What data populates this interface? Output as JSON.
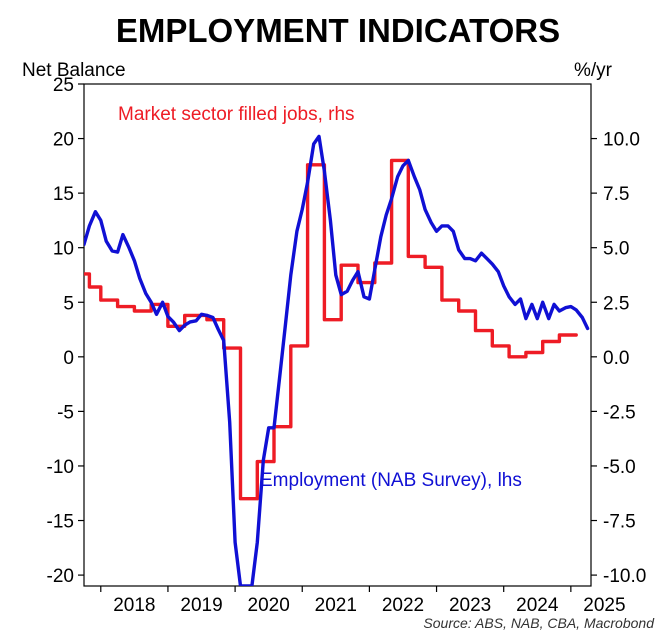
{
  "chart_data": {
    "type": "line",
    "title": "EMPLOYMENT INDICATORS",
    "ylabel_left": "Net Balance",
    "ylabel_right": "%/yr",
    "xlabel": "",
    "x_ticks": [
      "2018",
      "2019",
      "2020",
      "2021",
      "2022",
      "2023",
      "2024",
      "2025"
    ],
    "y_left": {
      "lim": [
        -21,
        25
      ],
      "ticks": [
        25,
        20,
        15,
        10,
        5,
        0,
        -5,
        -10,
        -15,
        -20
      ]
    },
    "y_right": {
      "lim": [
        -10.5,
        12.5
      ],
      "ticks": [
        "10.0",
        "7.5",
        "5.0",
        "2.5",
        "0.0",
        "-2.5",
        "-5.0",
        "-7.5",
        "-10.0"
      ],
      "tick_values": [
        10,
        7.5,
        5,
        2.5,
        0,
        -2.5,
        -5,
        -7.5,
        -10
      ]
    },
    "x_range": [
      2017.75,
      2025.3
    ],
    "grid": false,
    "source": "Source: ABS, NAB, CBA, Macrobond",
    "annotations": {
      "red": "Market sector filled jobs, rhs",
      "blue": "Employment (NAB Survey), lhs"
    },
    "colors": {
      "red": "#ee1c25",
      "blue": "#1010d4"
    },
    "series": [
      {
        "name": "Employment (NAB Survey)",
        "axis": "left",
        "color": "#1010d4",
        "points": [
          [
            2017.75,
            10.3
          ],
          [
            2017.83,
            12.0
          ],
          [
            2017.92,
            13.3
          ],
          [
            2018.0,
            12.5
          ],
          [
            2018.08,
            10.6
          ],
          [
            2018.17,
            9.7
          ],
          [
            2018.25,
            9.6
          ],
          [
            2018.33,
            11.2
          ],
          [
            2018.42,
            10.0
          ],
          [
            2018.5,
            8.8
          ],
          [
            2018.58,
            7.2
          ],
          [
            2018.67,
            5.8
          ],
          [
            2018.75,
            5.0
          ],
          [
            2018.83,
            3.9
          ],
          [
            2018.92,
            5.0
          ],
          [
            2019.0,
            3.7
          ],
          [
            2019.08,
            3.2
          ],
          [
            2019.17,
            2.4
          ],
          [
            2019.25,
            2.9
          ],
          [
            2019.33,
            3.2
          ],
          [
            2019.42,
            3.3
          ],
          [
            2019.5,
            3.9
          ],
          [
            2019.58,
            3.8
          ],
          [
            2019.67,
            3.6
          ],
          [
            2019.75,
            2.5
          ],
          [
            2019.83,
            1.5
          ],
          [
            2019.92,
            -6.0
          ],
          [
            2020.0,
            -17.0
          ],
          [
            2020.08,
            -21.0
          ],
          [
            2020.17,
            -21.0
          ],
          [
            2020.25,
            -21.0
          ],
          [
            2020.33,
            -17.0
          ],
          [
            2020.42,
            -9.5
          ],
          [
            2020.5,
            -6.5
          ],
          [
            2020.58,
            -6.5
          ],
          [
            2020.67,
            -1.5
          ],
          [
            2020.75,
            3.0
          ],
          [
            2020.83,
            7.5
          ],
          [
            2020.92,
            11.5
          ],
          [
            2021.0,
            13.5
          ],
          [
            2021.08,
            16.0
          ],
          [
            2021.17,
            19.5
          ],
          [
            2021.25,
            20.2
          ],
          [
            2021.33,
            17.0
          ],
          [
            2021.42,
            12.5
          ],
          [
            2021.5,
            7.5
          ],
          [
            2021.58,
            5.7
          ],
          [
            2021.67,
            6.0
          ],
          [
            2021.75,
            7.0
          ],
          [
            2021.83,
            7.8
          ],
          [
            2021.92,
            5.5
          ],
          [
            2022.0,
            5.3
          ],
          [
            2022.08,
            8.0
          ],
          [
            2022.17,
            11.0
          ],
          [
            2022.25,
            13.0
          ],
          [
            2022.33,
            14.5
          ],
          [
            2022.42,
            16.5
          ],
          [
            2022.5,
            17.5
          ],
          [
            2022.58,
            18.0
          ],
          [
            2022.67,
            16.5
          ],
          [
            2022.75,
            15.3
          ],
          [
            2022.83,
            13.5
          ],
          [
            2022.92,
            12.3
          ],
          [
            2023.0,
            11.5
          ],
          [
            2023.08,
            12.0
          ],
          [
            2023.17,
            12.0
          ],
          [
            2023.25,
            11.5
          ],
          [
            2023.33,
            9.8
          ],
          [
            2023.42,
            9.0
          ],
          [
            2023.5,
            9.0
          ],
          [
            2023.58,
            8.8
          ],
          [
            2023.67,
            9.5
          ],
          [
            2023.75,
            9.0
          ],
          [
            2023.83,
            8.5
          ],
          [
            2023.92,
            7.8
          ],
          [
            2024.0,
            6.5
          ],
          [
            2024.08,
            5.5
          ],
          [
            2024.17,
            4.8
          ],
          [
            2024.25,
            5.3
          ],
          [
            2024.33,
            3.5
          ],
          [
            2024.42,
            4.8
          ],
          [
            2024.5,
            3.5
          ],
          [
            2024.58,
            5.0
          ],
          [
            2024.67,
            3.5
          ],
          [
            2024.75,
            4.8
          ],
          [
            2024.83,
            4.2
          ],
          [
            2024.92,
            4.5
          ],
          [
            2025.0,
            4.6
          ],
          [
            2025.08,
            4.3
          ],
          [
            2025.17,
            3.6
          ],
          [
            2025.25,
            2.6
          ]
        ]
      },
      {
        "name": "Market sector filled jobs",
        "axis": "right",
        "color": "#ee1c25",
        "points": [
          [
            2017.75,
            3.8
          ],
          [
            2017.83,
            3.8
          ],
          [
            2017.83,
            3.2
          ],
          [
            2018.0,
            3.2
          ],
          [
            2018.0,
            2.6
          ],
          [
            2018.25,
            2.6
          ],
          [
            2018.25,
            2.3
          ],
          [
            2018.5,
            2.3
          ],
          [
            2018.5,
            2.1
          ],
          [
            2018.75,
            2.1
          ],
          [
            2018.75,
            2.4
          ],
          [
            2019.0,
            2.4
          ],
          [
            2019.0,
            1.4
          ],
          [
            2019.25,
            1.4
          ],
          [
            2019.25,
            1.9
          ],
          [
            2019.58,
            1.9
          ],
          [
            2019.58,
            1.7
          ],
          [
            2019.83,
            1.7
          ],
          [
            2019.83,
            0.4
          ],
          [
            2020.08,
            0.4
          ],
          [
            2020.08,
            -6.5
          ],
          [
            2020.33,
            -6.5
          ],
          [
            2020.33,
            -4.8
          ],
          [
            2020.58,
            -4.8
          ],
          [
            2020.58,
            -3.2
          ],
          [
            2020.83,
            -3.2
          ],
          [
            2020.83,
            0.5
          ],
          [
            2021.08,
            0.5
          ],
          [
            2021.08,
            8.8
          ],
          [
            2021.33,
            8.8
          ],
          [
            2021.33,
            1.7
          ],
          [
            2021.58,
            1.7
          ],
          [
            2021.58,
            4.2
          ],
          [
            2021.83,
            4.2
          ],
          [
            2021.83,
            3.4
          ],
          [
            2022.08,
            3.4
          ],
          [
            2022.08,
            4.3
          ],
          [
            2022.33,
            4.3
          ],
          [
            2022.33,
            9.0
          ],
          [
            2022.58,
            9.0
          ],
          [
            2022.58,
            4.6
          ],
          [
            2022.83,
            4.6
          ],
          [
            2022.83,
            4.1
          ],
          [
            2023.08,
            4.1
          ],
          [
            2023.08,
            2.6
          ],
          [
            2023.33,
            2.6
          ],
          [
            2023.33,
            2.1
          ],
          [
            2023.58,
            2.1
          ],
          [
            2023.58,
            1.2
          ],
          [
            2023.83,
            1.2
          ],
          [
            2023.83,
            0.5
          ],
          [
            2024.08,
            0.5
          ],
          [
            2024.08,
            0.0
          ],
          [
            2024.33,
            0.0
          ],
          [
            2024.33,
            0.2
          ],
          [
            2024.58,
            0.2
          ],
          [
            2024.58,
            0.7
          ],
          [
            2024.83,
            0.7
          ],
          [
            2024.83,
            1.0
          ],
          [
            2025.08,
            1.0
          ]
        ]
      }
    ]
  }
}
